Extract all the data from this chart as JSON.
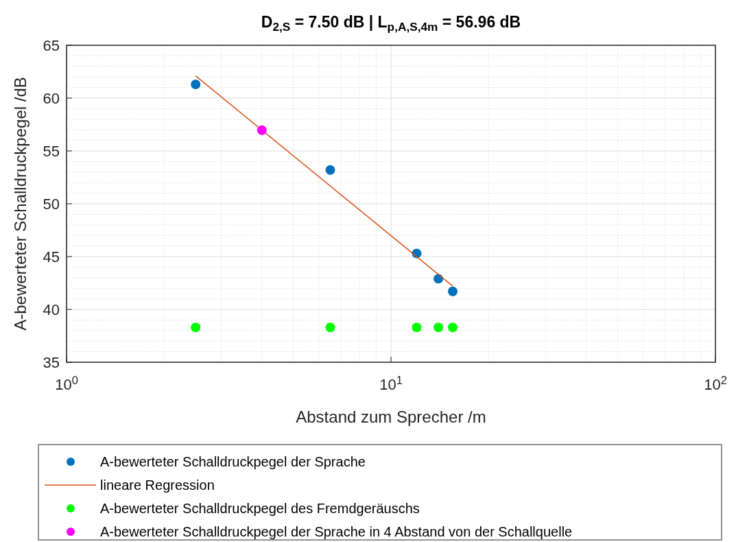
{
  "chart_data": {
    "type": "scatter",
    "title": "D$_{2,S}$ = 7.50 dB | L$_{p,A,S,4m}$ = 56.96 dB",
    "xlabel": "Abstand zum Sprecher /m",
    "ylabel": "A-bewerteter Schalldruckpegel /dB",
    "log": "x",
    "xlim": [
      1,
      100
    ],
    "xticks": [
      {
        "value": 1,
        "label": "10$^{0}$"
      },
      {
        "value": 10,
        "label": "10$^{1}$"
      },
      {
        "value": 100,
        "label": "10$^{2}$"
      }
    ],
    "ylim": [
      35,
      65
    ],
    "yticks": [
      35,
      40,
      45,
      50,
      55,
      60,
      65
    ],
    "grid": true,
    "legend": "bottom",
    "marker": "circle",
    "series": [
      {
        "name": "A-bewerteter Schalldruckpegel der Sprache",
        "color": "#0072bd",
        "x": [
          2.5,
          6.5,
          12,
          14,
          15.5
        ],
        "values": [
          61.3,
          53.2,
          45.3,
          42.9,
          41.7
        ]
      },
      {
        "name": "lineare Regression",
        "type": "line",
        "marker": "none",
        "color": "#d95319",
        "x": [
          2.5,
          15.5
        ],
        "values": [
          62.1,
          42.2
        ]
      },
      {
        "name": "A-bewerteter Schalldruckpegel des Fremdgeräuschs",
        "color": "#00ff00",
        "x": [
          2.5,
          6.5,
          12,
          14,
          15.5
        ],
        "values": [
          38.3,
          38.3,
          38.3,
          38.3,
          38.3
        ]
      },
      {
        "name": "A-bewerteter Schalldruckpegel der Sprache in 4 Abstand von der Schallquelle",
        "color": "#ff00ff",
        "x": [
          4
        ],
        "values": [
          56.96
        ]
      }
    ]
  }
}
